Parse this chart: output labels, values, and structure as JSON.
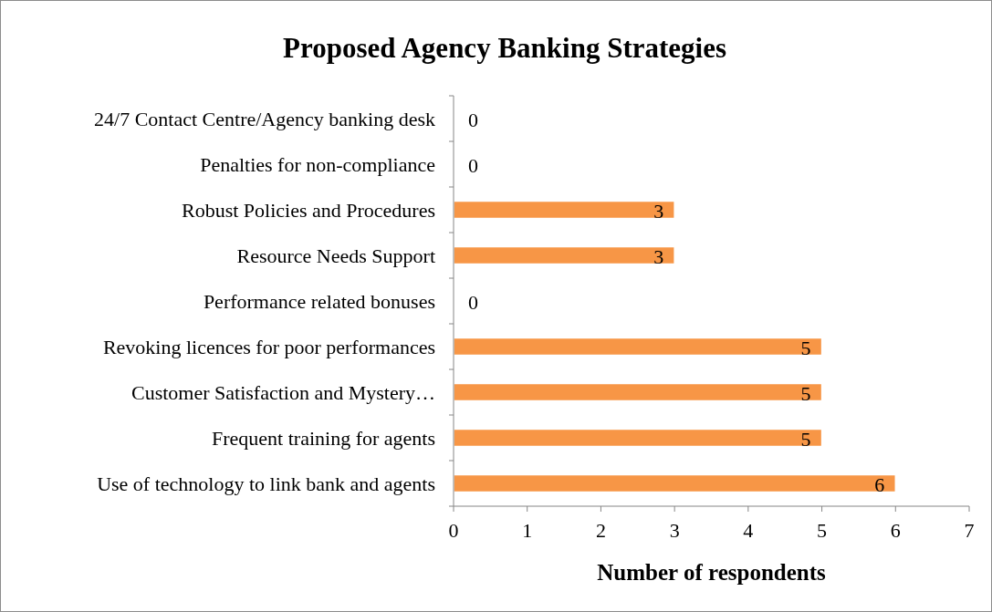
{
  "chart_data": {
    "type": "bar",
    "orientation": "horizontal",
    "title": "Proposed Agency Banking Strategies",
    "xlabel": "Number of respondents",
    "categories": [
      "24/7 Contact Centre/Agency banking desk",
      "Penalties for non-compliance",
      "Robust Policies and Procedures",
      "Resource Needs Support",
      "Performance related bonuses",
      "Revoking licences for poor performances",
      "Customer Satisfaction and Mystery…",
      "Frequent training for agents",
      "Use of technology to link bank and agents"
    ],
    "values": [
      0,
      0,
      3,
      3,
      0,
      5,
      5,
      5,
      6
    ],
    "color": "#f79646",
    "xlim": [
      0,
      7
    ],
    "xticks": [
      0,
      1,
      2,
      3,
      4,
      5,
      6,
      7
    ],
    "data_labels": true
  }
}
